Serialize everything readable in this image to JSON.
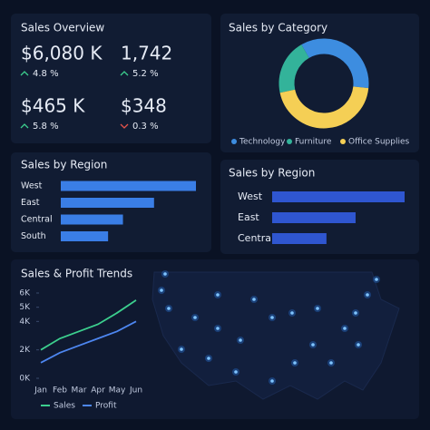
{
  "sales_overview": {
    "title": "Sales Overview",
    "kpis": [
      {
        "value": "$6,080 K",
        "change": "4.8 %",
        "direction": "up"
      },
      {
        "value": "1,742",
        "change": "5.2 %",
        "direction": "up"
      },
      {
        "value": "$465 K",
        "change": "5.8 %",
        "direction": "up"
      },
      {
        "value": "$348",
        "change": "0.3 %",
        "direction": "down"
      }
    ]
  },
  "sales_by_category": {
    "type": "pie",
    "title": "Sales by Category",
    "categories": [
      "Technology",
      "Furniture",
      "Office Supplies"
    ],
    "values": [
      35,
      20,
      45
    ],
    "colors": [
      "#3d8de0",
      "#33b39a",
      "#f5cf55"
    ]
  },
  "sales_by_region": {
    "type": "bar",
    "title": "Sales by Region",
    "categories": [
      "West",
      "East",
      "Central",
      "South"
    ],
    "values": [
      100,
      69,
      46,
      35
    ],
    "color": "#3a7ee6"
  },
  "sales_by_region_2": {
    "type": "bar",
    "title": "Sales by Region",
    "categories": [
      "West",
      "East",
      "Central"
    ],
    "values": [
      100,
      63,
      41
    ],
    "color": "#2f56d0"
  },
  "trends": {
    "type": "line",
    "title": "Sales & Profit Trends",
    "categories": [
      "Jan",
      "Feb",
      "Mar",
      "Apr",
      "May",
      "Jun"
    ],
    "ylim": [
      0,
      6000
    ],
    "yticks": [
      {
        "value": 0,
        "label": "0K"
      },
      {
        "value": 2000,
        "label": "2K"
      },
      {
        "value": 4000,
        "label": "4K"
      },
      {
        "value": 5000,
        "label": "5K"
      },
      {
        "value": 6000,
        "label": "6K"
      }
    ],
    "series": [
      {
        "name": "Sales",
        "color": "#3ccf8e",
        "values": [
          2000,
          2800,
          3300,
          3800,
          4600,
          5500
        ]
      },
      {
        "name": "Profit",
        "color": "#4d86f0",
        "values": [
          1100,
          1800,
          2300,
          2800,
          3300,
          4000
        ]
      }
    ]
  }
}
